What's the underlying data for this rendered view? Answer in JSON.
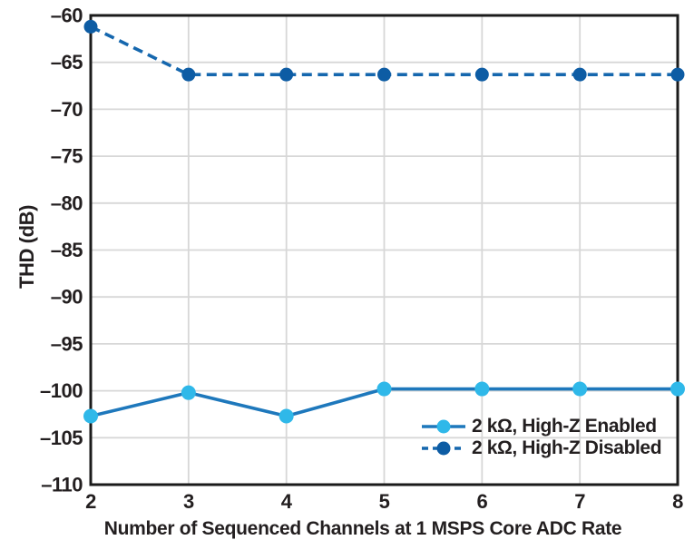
{
  "chart_data": {
    "type": "line",
    "title": "",
    "xlabel": "Number of Sequenced Channels at 1 MSPS Core ADC Rate",
    "ylabel": "THD (dB)",
    "x": [
      2,
      3,
      4,
      5,
      6,
      7,
      8
    ],
    "series": [
      {
        "name": "2 kΩ, High-Z Enabled",
        "values": [
          -102.7,
          -100.2,
          -102.7,
          -99.8,
          -99.8,
          -99.8,
          -99.8
        ],
        "line_style": "solid",
        "line_color": "#1e78bc",
        "marker_color": "#2fb8e9"
      },
      {
        "name": "2 kΩ, High-Z Disabled",
        "values": [
          -61.2,
          -66.3,
          -66.3,
          -66.3,
          -66.3,
          -66.3,
          -66.3
        ],
        "line_style": "dashed",
        "line_color": "#1567ae",
        "marker_color": "#0d5ca4"
      }
    ],
    "xlim": [
      2,
      8
    ],
    "ylim": [
      -110,
      -60
    ],
    "xticks": {
      "values": [
        2,
        3,
        4,
        5,
        6,
        7,
        8
      ],
      "labels": [
        "2",
        "3",
        "4",
        "5",
        "6",
        "7",
        "8"
      ]
    },
    "yticks": {
      "values": [
        -60,
        -65,
        -70,
        -75,
        -80,
        -85,
        -90,
        -95,
        -100,
        -105,
        -110
      ],
      "labels": [
        "–60",
        "–65",
        "–70",
        "–75",
        "–80",
        "–85",
        "–90",
        "–95",
        "–100",
        "–105",
        "–110"
      ]
    },
    "grid": true,
    "legend_position": "inside lower right",
    "colors": {
      "grid": "#d7d7d7",
      "axis": "#1b1b1b",
      "text": "#231f20",
      "background": "#ffffff"
    }
  }
}
